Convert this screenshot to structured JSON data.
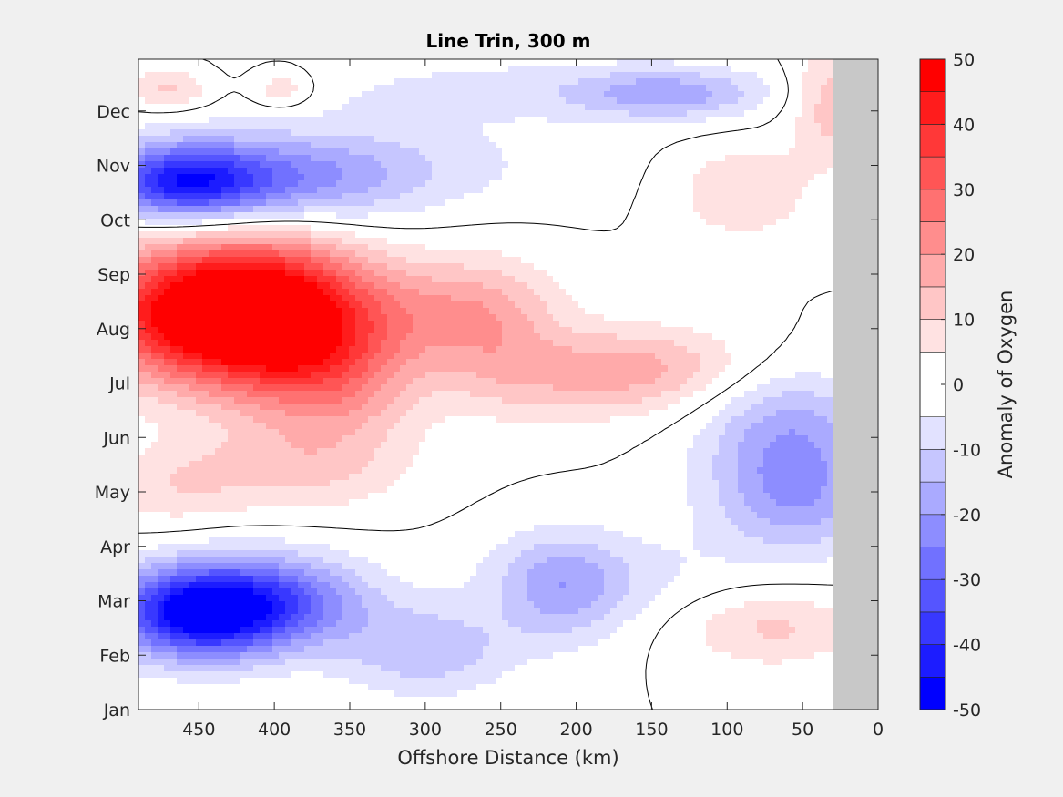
{
  "figure": {
    "background": "#f0f0f0",
    "missing_color": "#c8c8c8"
  },
  "chart_data": {
    "type": "heatmap",
    "subtype": "filled-contour",
    "title": "Line Trin, 300 m",
    "xlabel": "Offshore Distance (km)",
    "ylabel": "",
    "xlim": [
      490,
      0
    ],
    "x_reversed": true,
    "xticks": [
      450,
      400,
      350,
      300,
      250,
      200,
      150,
      100,
      50,
      0
    ],
    "ylim": [
      1,
      12.95
    ],
    "yticks": [
      {
        "value": 1,
        "label": "Jan"
      },
      {
        "value": 2,
        "label": "Feb"
      },
      {
        "value": 3,
        "label": "Mar"
      },
      {
        "value": 4,
        "label": "Apr"
      },
      {
        "value": 5,
        "label": "May"
      },
      {
        "value": 6,
        "label": "Jun"
      },
      {
        "value": 7,
        "label": "Jul"
      },
      {
        "value": 8,
        "label": "Aug"
      },
      {
        "value": 9,
        "label": "Sep"
      },
      {
        "value": 10,
        "label": "Oct"
      },
      {
        "value": 11,
        "label": "Nov"
      },
      {
        "value": 12,
        "label": "Dec"
      }
    ],
    "no_data_x_range": [
      30,
      0
    ],
    "zero_contour_color": "#000000",
    "colorbar": {
      "label": "Anomaly of Oxygen",
      "range": [
        -50,
        50
      ],
      "ticks": [
        50,
        40,
        30,
        20,
        10,
        0,
        -10,
        -20,
        -30,
        -40,
        -50
      ],
      "boundaries": [
        -50,
        -45,
        -40,
        -35,
        -30,
        -25,
        -20,
        -15,
        -10,
        -5,
        5,
        10,
        15,
        20,
        25,
        30,
        35,
        40,
        45,
        50
      ],
      "colors": [
        "#0000ff",
        "#1c1cff",
        "#3838ff",
        "#5555ff",
        "#7171ff",
        "#8d8dff",
        "#aaaaff",
        "#c6c6ff",
        "#e2e2ff",
        "#ffffff",
        "#ffe2e2",
        "#ffc6c6",
        "#ffaaaa",
        "#ff8d8d",
        "#ff7171",
        "#ff5555",
        "#ff3838",
        "#ff1c1c",
        "#ff0000"
      ]
    },
    "anomaly_features": [
      {
        "x": 440,
        "y": 8.3,
        "sx": 55,
        "sy": 0.9,
        "value": 58
      },
      {
        "x": 385,
        "y": 8.0,
        "sx": 40,
        "sy": 1.1,
        "value": 24
      },
      {
        "x": 350,
        "y": 7.0,
        "sx": 35,
        "sy": 1.0,
        "value": 12
      },
      {
        "x": 285,
        "y": 8.3,
        "sx": 45,
        "sy": 0.7,
        "value": 16
      },
      {
        "x": 250,
        "y": 7.8,
        "sx": 30,
        "sy": 0.9,
        "value": 7
      },
      {
        "x": 190,
        "y": 7.1,
        "sx": 60,
        "sy": 0.55,
        "value": 12
      },
      {
        "x": 150,
        "y": 7.4,
        "sx": 45,
        "sy": 0.5,
        "value": 8
      },
      {
        "x": 400,
        "y": 5.4,
        "sx": 55,
        "sy": 0.55,
        "value": 10
      },
      {
        "x": 470,
        "y": 5.0,
        "sx": 30,
        "sy": 0.5,
        "value": 6
      },
      {
        "x": 460,
        "y": 10.7,
        "sx": 40,
        "sy": 0.5,
        "value": -42
      },
      {
        "x": 380,
        "y": 10.7,
        "sx": 50,
        "sy": 0.6,
        "value": -16
      },
      {
        "x": 320,
        "y": 11.0,
        "sx": 80,
        "sy": 0.6,
        "value": -7
      },
      {
        "x": 140,
        "y": 12.3,
        "sx": 40,
        "sy": 0.3,
        "value": -14
      },
      {
        "x": 220,
        "y": 12.4,
        "sx": 120,
        "sy": 0.45,
        "value": -7
      },
      {
        "x": 450,
        "y": 2.8,
        "sx": 40,
        "sy": 0.6,
        "value": -50
      },
      {
        "x": 390,
        "y": 3.0,
        "sx": 40,
        "sy": 0.6,
        "value": -22
      },
      {
        "x": 300,
        "y": 2.1,
        "sx": 40,
        "sy": 0.6,
        "value": -14
      },
      {
        "x": 210,
        "y": 3.2,
        "sx": 30,
        "sy": 0.7,
        "value": -15
      },
      {
        "x": 180,
        "y": 3.5,
        "sx": 60,
        "sy": 0.6,
        "value": -6
      },
      {
        "x": 55,
        "y": 5.0,
        "sx": 40,
        "sy": 0.8,
        "value": -20
      },
      {
        "x": 60,
        "y": 6.3,
        "sx": 40,
        "sy": 0.7,
        "value": -13
      },
      {
        "x": 70,
        "y": 2.5,
        "sx": 40,
        "sy": 0.5,
        "value": 11
      },
      {
        "x": 90,
        "y": 10.5,
        "sx": 30,
        "sy": 0.6,
        "value": 10
      },
      {
        "x": 30,
        "y": 12.2,
        "sx": 20,
        "sy": 0.8,
        "value": 14
      },
      {
        "x": 470,
        "y": 12.4,
        "sx": 20,
        "sy": 0.25,
        "value": 12
      },
      {
        "x": 395,
        "y": 12.4,
        "sx": 15,
        "sy": 0.25,
        "value": 10
      }
    ]
  }
}
